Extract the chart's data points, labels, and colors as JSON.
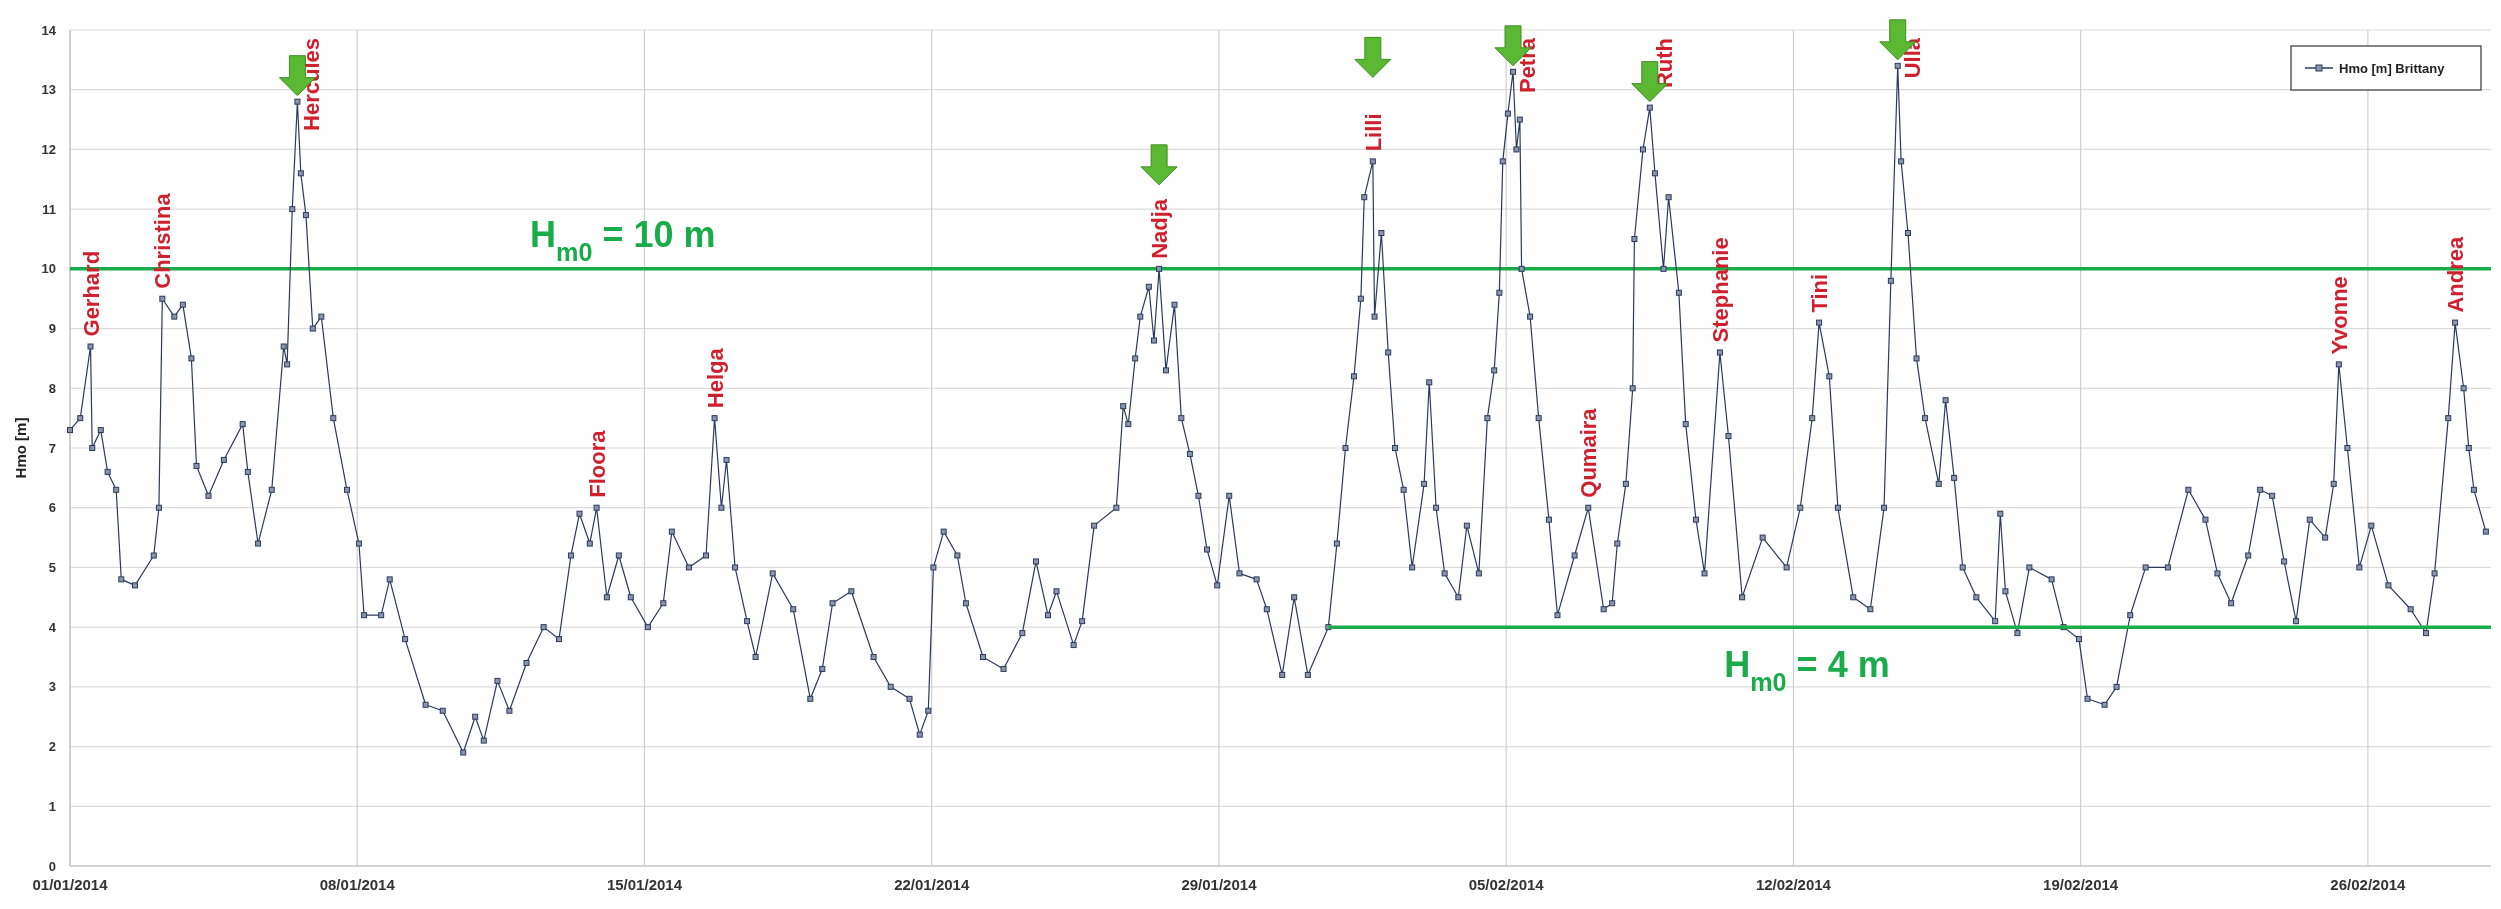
{
  "chart_data": {
    "type": "line",
    "ylabel": "Hmo [m]",
    "xlim": [
      "2014-01-01",
      "2014-03-01"
    ],
    "xticks": [
      {
        "value": "2014-01-01",
        "label": "01/01/2014"
      },
      {
        "value": "2014-01-08",
        "label": "08/01/2014"
      },
      {
        "value": "2014-01-15",
        "label": "15/01/2014"
      },
      {
        "value": "2014-01-22",
        "label": "22/01/2014"
      },
      {
        "value": "2014-01-29",
        "label": "29/01/2014"
      },
      {
        "value": "2014-02-05",
        "label": "05/02/2014"
      },
      {
        "value": "2014-02-12",
        "label": "12/02/2014"
      },
      {
        "value": "2014-02-19",
        "label": "19/02/2014"
      },
      {
        "value": "2014-02-26",
        "label": "26/02/2014"
      }
    ],
    "ylim": [
      0,
      14
    ],
    "yticks": [
      0,
      1,
      2,
      3,
      4,
      5,
      6,
      7,
      8,
      9,
      10,
      11,
      12,
      13,
      14
    ],
    "grid": true,
    "legend": "top right",
    "marker": "square",
    "series": [
      {
        "name": "Hmo [m] Brittany",
        "color": "#2b3a5c",
        "x": [
          "2014-01-01T00:00",
          "2014-01-01T06:00",
          "2014-01-01T12:00",
          "2014-01-01T13:00",
          "2014-01-01T18:00",
          "2014-01-01T22:00",
          "2014-01-02T03:00",
          "2014-01-02T06:00",
          "2014-01-02T14:00",
          "2014-01-03T01:00",
          "2014-01-03T04:00",
          "2014-01-03T06:00",
          "2014-01-03T13:00",
          "2014-01-03T18:00",
          "2014-01-03T23:00",
          "2014-01-04T02:00",
          "2014-01-04T09:00",
          "2014-01-04T18:00",
          "2014-01-05T05:00",
          "2014-01-05T08:00",
          "2014-01-05T14:00",
          "2014-01-05T22:00",
          "2014-01-06T05:00",
          "2014-01-06T07:00",
          "2014-01-06T10:00",
          "2014-01-06T13:00",
          "2014-01-06T15:00",
          "2014-01-06T18:00",
          "2014-01-06T22:00",
          "2014-01-07T03:00",
          "2014-01-07T10:00",
          "2014-01-07T18:00",
          "2014-01-08T01:00",
          "2014-01-08T04:00",
          "2014-01-08T14:00",
          "2014-01-08T19:00",
          "2014-01-09T04:00",
          "2014-01-09T16:00",
          "2014-01-10T02:00",
          "2014-01-10T14:00",
          "2014-01-10T21:00",
          "2014-01-11T02:00",
          "2014-01-11T10:00",
          "2014-01-11T17:00",
          "2014-01-12T03:00",
          "2014-01-12T13:00",
          "2014-01-12T22:00",
          "2014-01-13T05:00",
          "2014-01-13T10:00",
          "2014-01-13T16:00",
          "2014-01-13T20:00",
          "2014-01-14T02:00",
          "2014-01-14T09:00",
          "2014-01-14T16:00",
          "2014-01-15T02:00",
          "2014-01-15T11:00",
          "2014-01-15T16:00",
          "2014-01-16T02:00",
          "2014-01-16T12:00",
          "2014-01-16T17:00",
          "2014-01-16T21:00",
          "2014-01-17T00:00",
          "2014-01-17T05:00",
          "2014-01-17T12:00",
          "2014-01-17T17:00",
          "2014-01-18T03:00",
          "2014-01-18T15:00",
          "2014-01-19T01:00",
          "2014-01-19T08:00",
          "2014-01-19T14:00",
          "2014-01-20T01:00",
          "2014-01-20T14:00",
          "2014-01-21T00:00",
          "2014-01-21T11:00",
          "2014-01-21T17:00",
          "2014-01-21T22:00",
          "2014-01-22T01:00",
          "2014-01-22T07:00",
          "2014-01-22T15:00",
          "2014-01-22T20:00",
          "2014-01-23T06:00",
          "2014-01-23T18:00",
          "2014-01-24T05:00",
          "2014-01-24T13:00",
          "2014-01-24T20:00",
          "2014-01-25T01:00",
          "2014-01-25T11:00",
          "2014-01-25T16:00",
          "2014-01-25T23:00",
          "2014-01-26T12:00",
          "2014-01-26T16:00",
          "2014-01-26T19:00",
          "2014-01-26T23:00",
          "2014-01-27T02:00",
          "2014-01-27T07:00",
          "2014-01-27T10:00",
          "2014-01-27T13:00",
          "2014-01-27T17:00",
          "2014-01-27T22:00",
          "2014-01-28T02:00",
          "2014-01-28T07:00",
          "2014-01-28T12:00",
          "2014-01-28T17:00",
          "2014-01-28T23:00",
          "2014-01-29T06:00",
          "2014-01-29T12:00",
          "2014-01-29T22:00",
          "2014-01-30T04:00",
          "2014-01-30T13:00",
          "2014-01-30T20:00",
          "2014-01-31T04:00",
          "2014-01-31T16:00",
          "2014-01-31T21:00",
          "2014-02-01T02:00",
          "2014-02-01T07:00",
          "2014-02-01T11:00",
          "2014-02-01T13:00",
          "2014-02-01T18:00",
          "2014-02-01T19:00",
          "2014-02-01T23:00",
          "2014-02-02T03:00",
          "2014-02-02T07:00",
          "2014-02-02T12:00",
          "2014-02-02T17:00",
          "2014-02-03T00:00",
          "2014-02-03T03:00",
          "2014-02-03T07:00",
          "2014-02-03T12:00",
          "2014-02-03T20:00",
          "2014-02-04T01:00",
          "2014-02-04T08:00",
          "2014-02-04T13:00",
          "2014-02-04T17:00",
          "2014-02-04T20:00",
          "2014-02-04T22:00",
          "2014-02-05T01:00",
          "2014-02-05T04:00",
          "2014-02-05T06:00",
          "2014-02-05T08:00",
          "2014-02-05T09:00",
          "2014-02-05T14:00",
          "2014-02-05T19:00",
          "2014-02-06T01:00",
          "2014-02-06T06:00",
          "2014-02-06T16:00",
          "2014-02-07T00:00",
          "2014-02-07T09:00",
          "2014-02-07T14:00",
          "2014-02-07T17:00",
          "2014-02-07T22:00",
          "2014-02-08T02:00",
          "2014-02-08T03:00",
          "2014-02-08T08:00",
          "2014-02-08T12:00",
          "2014-02-08T15:00",
          "2014-02-08T20:00",
          "2014-02-08T23:00",
          "2014-02-09T05:00",
          "2014-02-09T09:00",
          "2014-02-09T15:00",
          "2014-02-09T20:00",
          "2014-02-10T05:00",
          "2014-02-10T10:00",
          "2014-02-10T18:00",
          "2014-02-11T06:00",
          "2014-02-11T20:00",
          "2014-02-12T04:00",
          "2014-02-12T11:00",
          "2014-02-12T15:00",
          "2014-02-12T21:00",
          "2014-02-13T02:00",
          "2014-02-13T11:00",
          "2014-02-13T21:00",
          "2014-02-14T05:00",
          "2014-02-14T09:00",
          "2014-02-14T13:00",
          "2014-02-14T15:00",
          "2014-02-14T19:00",
          "2014-02-15T00:00",
          "2014-02-15T05:00",
          "2014-02-15T13:00",
          "2014-02-15T17:00",
          "2014-02-15T22:00",
          "2014-02-16T03:00",
          "2014-02-16T11:00",
          "2014-02-16T22:00",
          "2014-02-17T01:00",
          "2014-02-17T04:00",
          "2014-02-17T11:00",
          "2014-02-17T18:00",
          "2014-02-18T07:00",
          "2014-02-18T14:00",
          "2014-02-18T23:00",
          "2014-02-19T04:00",
          "2014-02-19T14:00",
          "2014-02-19T21:00",
          "2014-02-20T05:00",
          "2014-02-20T14:00",
          "2014-02-21T03:00",
          "2014-02-21T15:00",
          "2014-02-22T01:00",
          "2014-02-22T08:00",
          "2014-02-22T16:00",
          "2014-02-23T02:00",
          "2014-02-23T09:00",
          "2014-02-23T16:00",
          "2014-02-23T23:00",
          "2014-02-24T06:00",
          "2014-02-24T14:00",
          "2014-02-24T23:00",
          "2014-02-25T04:00",
          "2014-02-25T07:00",
          "2014-02-25T12:00",
          "2014-02-25T19:00",
          "2014-02-26T02:00",
          "2014-02-26T12:00",
          "2014-02-27T01:00",
          "2014-02-27T10:00",
          "2014-02-27T15:00",
          "2014-02-27T23:00",
          "2014-02-28T03:00",
          "2014-02-28T08:00",
          "2014-02-28T11:00",
          "2014-02-28T14:00",
          "2014-02-28T21:00"
        ],
        "values": [
          7.3,
          7.5,
          8.7,
          7.0,
          7.3,
          6.6,
          6.3,
          4.8,
          4.7,
          5.2,
          6.0,
          9.5,
          9.2,
          9.4,
          8.5,
          6.7,
          6.2,
          6.8,
          7.4,
          6.6,
          5.4,
          6.3,
          8.7,
          8.4,
          11.0,
          12.8,
          11.6,
          10.9,
          9.0,
          9.2,
          7.5,
          6.3,
          5.4,
          4.2,
          4.2,
          4.8,
          3.8,
          2.7,
          2.6,
          1.9,
          2.5,
          2.1,
          3.1,
          2.6,
          3.4,
          4.0,
          3.8,
          5.2,
          5.9,
          5.4,
          6.0,
          4.5,
          5.2,
          4.5,
          4.0,
          4.4,
          5.6,
          5.0,
          5.2,
          7.5,
          6.0,
          6.8,
          5.0,
          4.1,
          3.5,
          4.9,
          4.3,
          2.8,
          3.3,
          4.4,
          4.6,
          3.5,
          3.0,
          2.8,
          2.2,
          2.6,
          5.0,
          5.6,
          5.2,
          4.4,
          3.5,
          3.3,
          3.9,
          5.1,
          4.2,
          4.6,
          3.7,
          4.1,
          5.7,
          6.0,
          7.7,
          7.4,
          8.5,
          9.2,
          9.7,
          8.8,
          10.0,
          8.3,
          9.4,
          7.5,
          6.9,
          6.2,
          5.3,
          4.7,
          6.2,
          4.9,
          4.8,
          4.3,
          3.2,
          4.5,
          3.2,
          4.0,
          5.4,
          7.0,
          8.2,
          9.5,
          11.2,
          11.8,
          9.2,
          10.6,
          8.6,
          7.0,
          6.3,
          5.0,
          6.4,
          8.1,
          6.0,
          4.9,
          4.5,
          5.7,
          4.9,
          7.5,
          8.3,
          9.6,
          11.8,
          12.6,
          13.3,
          12.0,
          12.5,
          10.0,
          9.2,
          7.5,
          5.8,
          4.2,
          5.2,
          6.0,
          4.3,
          4.4,
          5.4,
          6.4,
          8.0,
          10.5,
          12.0,
          12.7,
          11.6,
          10.0,
          11.2,
          9.6,
          7.4,
          5.8,
          4.9,
          8.6,
          7.2,
          4.5,
          5.5,
          5.0,
          6.0,
          7.5,
          9.1,
          8.2,
          6.0,
          4.5,
          4.3,
          6.0,
          9.8,
          13.4,
          11.8,
          10.6,
          8.5,
          7.5,
          6.4,
          7.8,
          6.5,
          5.0,
          4.5,
          4.1,
          5.9,
          4.6,
          3.9,
          5.0,
          4.8,
          4.0,
          3.8,
          2.8,
          2.7,
          3.0,
          4.2,
          5.0,
          5.0,
          6.3,
          5.8,
          4.9,
          4.4,
          5.2,
          6.3,
          6.2,
          5.1,
          4.1,
          5.8,
          5.5,
          6.4,
          8.4,
          7.0,
          5.0,
          5.7,
          4.7,
          4.3,
          3.9,
          4.9,
          7.5,
          9.1,
          8.0,
          7.0,
          6.3,
          5.6
        ]
      },
      {
        "name": "H$_{m0}$ = 4 m",
        "type": "line",
        "marker": "none",
        "color": "#1aab4a",
        "x": [
          "2014-01-31T16:00",
          "2014-03-01T00:00"
        ],
        "values": [
          4,
          4
        ]
      }
    ],
    "ref_lines": [
      {
        "axis": "y",
        "value": 10,
        "label": "H$_{m0}$ = 10 m",
        "color": "#1aab4a"
      }
    ],
    "annotations": [
      {
        "text": "Gerhard",
        "x": "2014-01-01T12:00",
        "y": 8.7
      },
      {
        "text": "Christina",
        "x": "2014-01-03T06:00",
        "y": 9.5
      },
      {
        "text": "Hercules",
        "x": "2014-01-06T13:00",
        "y": 12.8
      },
      {
        "text": "Floora",
        "x": "2014-01-13T20:00",
        "y": 6.0
      },
      {
        "text": "Helga",
        "x": "2014-01-16T17:00",
        "y": 7.5
      },
      {
        "text": "Nadja",
        "x": "2014-01-27T13:00",
        "y": 10.0
      },
      {
        "text": "Lilli",
        "x": "2014-02-01T18:00",
        "y": 11.8
      },
      {
        "text": "Petra",
        "x": "2014-02-05T04:00",
        "y": 13.3
      },
      {
        "text": "Qumaira",
        "x": "2014-02-07T00:00",
        "y": 6.0
      },
      {
        "text": "Ruth",
        "x": "2014-02-08T12:00",
        "y": 12.7
      },
      {
        "text": "Stephanie",
        "x": "2014-02-10T05:00",
        "y": 8.6
      },
      {
        "text": "Tini",
        "x": "2014-02-12T15:00",
        "y": 9.1
      },
      {
        "text": "Ulla",
        "x": "2014-02-14T13:00",
        "y": 13.4
      },
      {
        "text": "Yvonne",
        "x": "2014-02-25T07:00",
        "y": 8.4
      },
      {
        "text": "Andrea",
        "x": "2014-02-28T03:00",
        "y": 9.1
      }
    ]
  }
}
